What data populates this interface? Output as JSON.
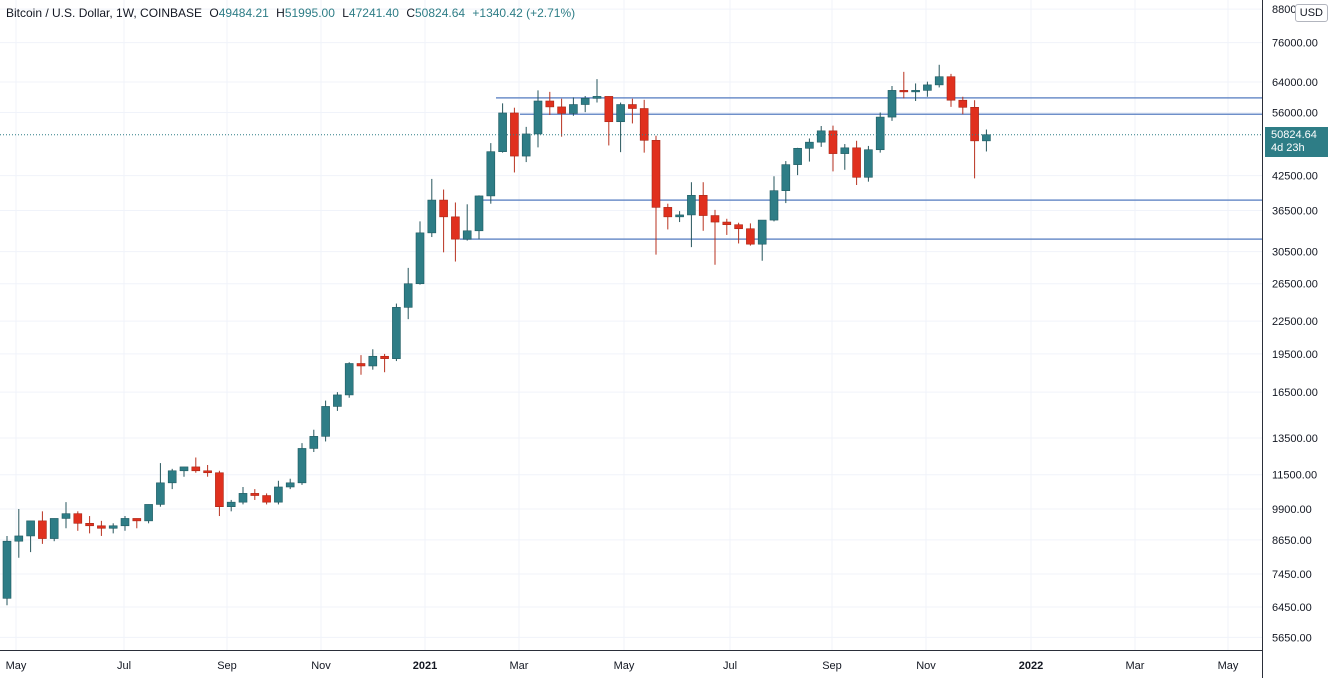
{
  "legend": {
    "symbol": "Bitcoin / U.S. Dollar, 1W, COINBASE",
    "open_label": "O",
    "open": "49484.21",
    "high_label": "H",
    "high": "51995.00",
    "low_label": "L",
    "low": "47241.40",
    "close_label": "C",
    "close": "50824.64",
    "change": "+1340.42 (+2.71%)"
  },
  "currency": "USD",
  "last_price": {
    "value": "50824.64",
    "countdown": "4d 23h"
  },
  "colors": {
    "up": "#2e7d86",
    "down": "#e0301e",
    "wick_up": "#26555c",
    "wick_down": "#b8321f",
    "hline": "#6e8fc9",
    "grid": "#f0f3fa",
    "axis": "#131722"
  },
  "chart_data": {
    "type": "candlestick",
    "title": "Bitcoin / U.S. Dollar, 1W, COINBASE",
    "y_scale": "log",
    "y_ticks": [
      "88000.00",
      "76000.00",
      "64000.00",
      "56000.00",
      "50824.64",
      "42500.00",
      "36500.00",
      "30500.00",
      "26500.00",
      "22500.00",
      "19500.00",
      "16500.00",
      "13500.00",
      "11500.00",
      "9900.00",
      "8650.00",
      "7450.00",
      "6450.00",
      "5650.00"
    ],
    "x_ticks": [
      "May",
      "Jul",
      "Sep",
      "Nov",
      "2021",
      "Mar",
      "May",
      "Jul",
      "Sep",
      "Nov",
      "2022",
      "Mar",
      "May"
    ],
    "horizontal_lines": [
      59700,
      55600,
      38200,
      32200
    ],
    "candles": [
      [
        6700,
        8800,
        6500,
        8600
      ],
      [
        8600,
        9900,
        8000,
        8800
      ],
      [
        8800,
        9400,
        8200,
        9400
      ],
      [
        9400,
        9800,
        8500,
        8700
      ],
      [
        8700,
        9500,
        8600,
        9500
      ],
      [
        9500,
        10200,
        9100,
        9700
      ],
      [
        9700,
        9800,
        9000,
        9300
      ],
      [
        9300,
        9600,
        8900,
        9200
      ],
      [
        9200,
        9400,
        8800,
        9100
      ],
      [
        9100,
        9300,
        8900,
        9200
      ],
      [
        9200,
        9600,
        9000,
        9500
      ],
      [
        9500,
        9500,
        9100,
        9400
      ],
      [
        9400,
        10100,
        9300,
        10100
      ],
      [
        10100,
        12100,
        10000,
        11100
      ],
      [
        11100,
        11800,
        10800,
        11700
      ],
      [
        11700,
        11900,
        11400,
        11900
      ],
      [
        11900,
        12400,
        11600,
        11700
      ],
      [
        11700,
        12000,
        11400,
        11600
      ],
      [
        11600,
        11700,
        9600,
        10000
      ],
      [
        10000,
        10300,
        9800,
        10200
      ],
      [
        10200,
        10900,
        10100,
        10600
      ],
      [
        10600,
        10800,
        10300,
        10500
      ],
      [
        10500,
        10600,
        10100,
        10200
      ],
      [
        10200,
        11200,
        10100,
        10900
      ],
      [
        10900,
        11300,
        10800,
        11100
      ],
      [
        11100,
        13200,
        11000,
        12900
      ],
      [
        12900,
        14000,
        12700,
        13600
      ],
      [
        13600,
        15900,
        13300,
        15500
      ],
      [
        15500,
        16500,
        15200,
        16300
      ],
      [
        16300,
        18800,
        16100,
        18700
      ],
      [
        18700,
        19400,
        17800,
        18500
      ],
      [
        18500,
        19900,
        18200,
        19300
      ],
      [
        19300,
        19500,
        18000,
        19100
      ],
      [
        19100,
        24300,
        18900,
        23900
      ],
      [
        23900,
        28400,
        22700,
        26500
      ],
      [
        26500,
        34800,
        26400,
        33100
      ],
      [
        33100,
        41900,
        32500,
        38200
      ],
      [
        38200,
        40000,
        30400,
        35500
      ],
      [
        35500,
        37800,
        29200,
        32200
      ],
      [
        32200,
        37500,
        32000,
        33400
      ],
      [
        33400,
        39000,
        32200,
        38900
      ],
      [
        38900,
        49000,
        37600,
        47200
      ],
      [
        47200,
        58300,
        47000,
        55900
      ],
      [
        55900,
        57200,
        43100,
        46300
      ],
      [
        46300,
        52600,
        45100,
        51000
      ],
      [
        51000,
        61700,
        48100,
        58900
      ],
      [
        58900,
        61300,
        55400,
        57400
      ],
      [
        57400,
        59500,
        50400,
        55800
      ],
      [
        55800,
        59800,
        55200,
        58000
      ],
      [
        58000,
        60200,
        56100,
        59600
      ],
      [
        59600,
        64800,
        58500,
        60100
      ],
      [
        60100,
        60100,
        48500,
        53800
      ],
      [
        53800,
        58500,
        47100,
        58000
      ],
      [
        58000,
        59500,
        53400,
        57000
      ],
      [
        57000,
        59200,
        47000,
        49600
      ],
      [
        49600,
        50600,
        30100,
        37000
      ],
      [
        37000,
        37600,
        33600,
        35500
      ],
      [
        35500,
        36400,
        34700,
        35800
      ],
      [
        35800,
        41300,
        31100,
        39000
      ],
      [
        39000,
        41300,
        33400,
        35700
      ],
      [
        35700,
        36600,
        28800,
        34700
      ],
      [
        34700,
        35200,
        32800,
        34300
      ],
      [
        34300,
        34600,
        31600,
        33700
      ],
      [
        33700,
        34500,
        31300,
        31500
      ],
      [
        31500,
        34500,
        29300,
        35000
      ],
      [
        35000,
        42400,
        34800,
        39800
      ],
      [
        39800,
        45300,
        37700,
        44600
      ],
      [
        44600,
        48000,
        42600,
        47900
      ],
      [
        47900,
        50000,
        45200,
        49200
      ],
      [
        49200,
        52800,
        48200,
        51700
      ],
      [
        51700,
        52900,
        43300,
        46800
      ],
      [
        46800,
        48800,
        43600,
        48000
      ],
      [
        48000,
        49500,
        40800,
        42200
      ],
      [
        42200,
        48400,
        41400,
        47600
      ],
      [
        47600,
        56000,
        47000,
        54900
      ],
      [
        54900,
        62900,
        54000,
        61700
      ],
      [
        61700,
        66900,
        59600,
        61300
      ],
      [
        61300,
        63600,
        58900,
        61700
      ],
      [
        61700,
        64100,
        60000,
        63200
      ],
      [
        63200,
        69000,
        62500,
        65500
      ],
      [
        65500,
        66300,
        57400,
        59100
      ],
      [
        59100,
        60000,
        55600,
        57300
      ],
      [
        57300,
        59100,
        42000,
        49484
      ],
      [
        49484,
        51995,
        47241,
        50825
      ]
    ]
  }
}
